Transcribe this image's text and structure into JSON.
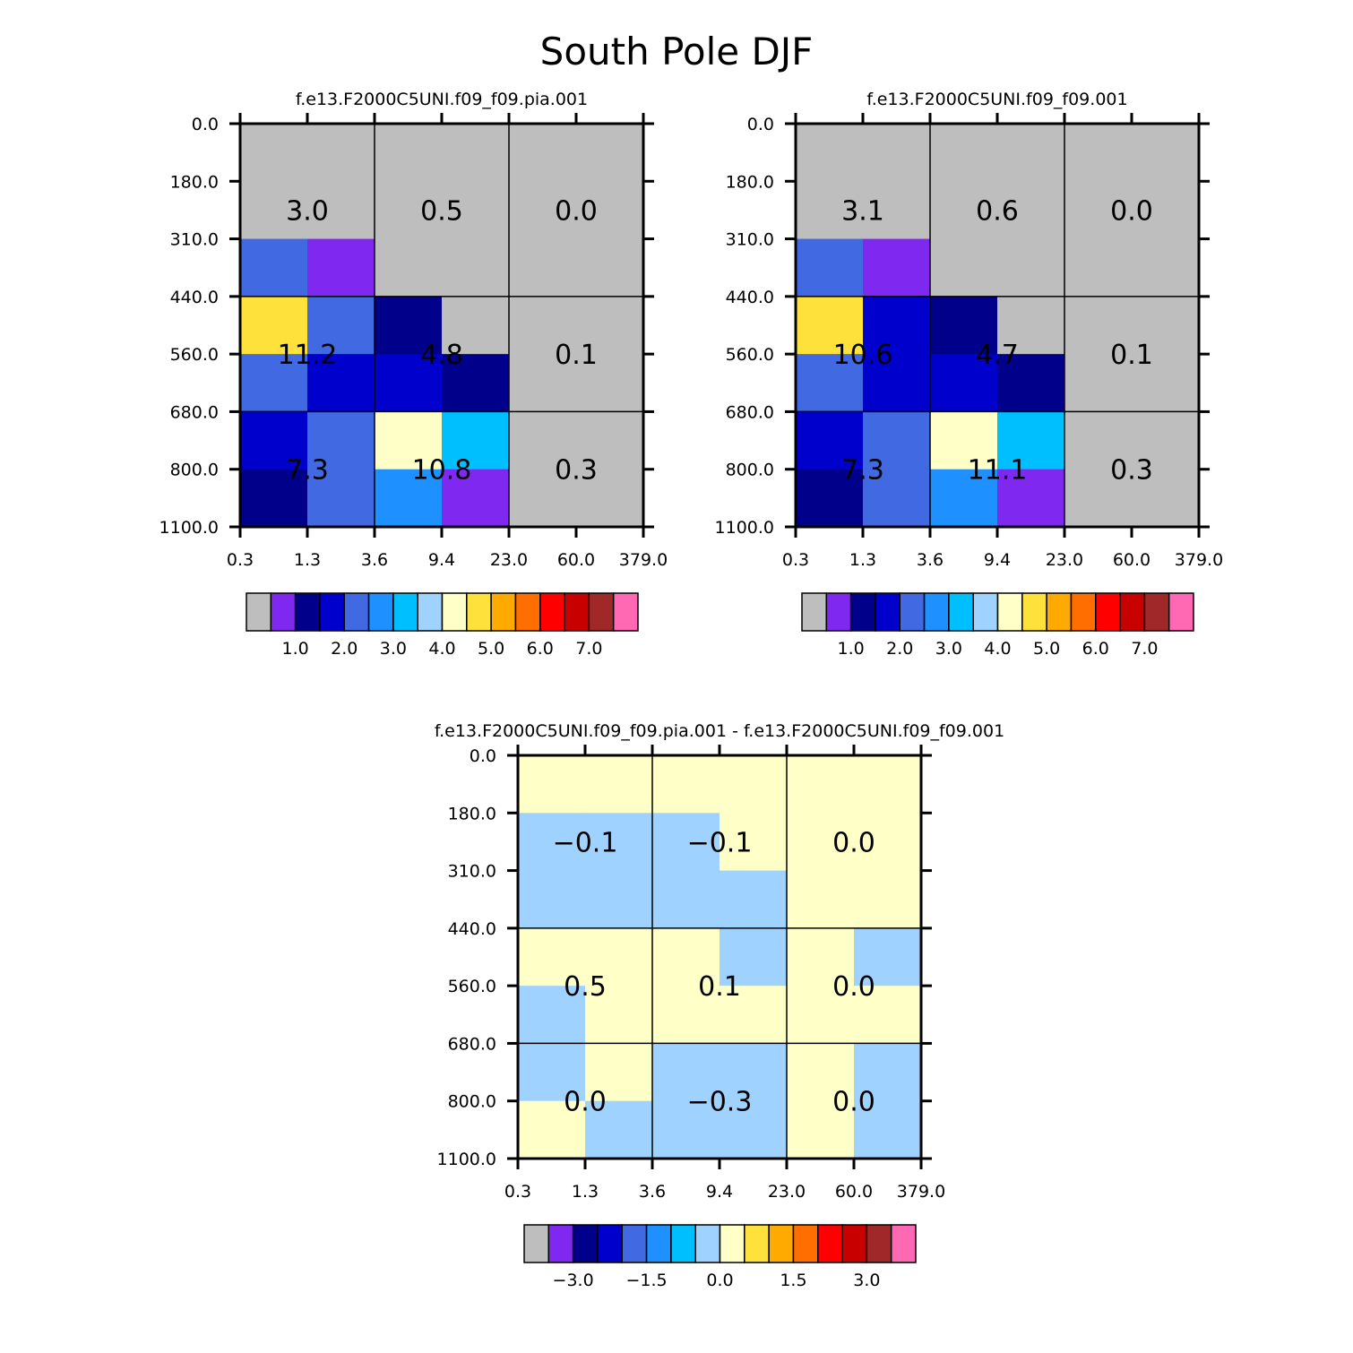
{
  "figure_title": "South Pole DJF",
  "chart_data": [
    {
      "type": "heatmap",
      "title": "f.e13.F2000C5UNI.f09_f09.pia.001",
      "xlabel": "",
      "ylabel": "",
      "x_ticks": [
        "0.3",
        "1.3",
        "3.6",
        "9.4",
        "23.0",
        "60.0",
        "379.0"
      ],
      "y_ticks": [
        "0.0",
        "180.0",
        "310.0",
        "440.0",
        "560.0",
        "680.0",
        "800.0",
        "1100.0"
      ],
      "color_index_grid": [
        [
          0,
          0,
          0,
          0,
          0,
          0
        ],
        [
          0,
          0,
          0,
          0,
          0,
          0
        ],
        [
          4,
          1,
          0,
          0,
          0,
          0
        ],
        [
          9,
          4,
          2,
          0,
          0,
          0
        ],
        [
          4,
          3,
          3,
          2,
          0,
          0
        ],
        [
          3,
          4,
          8,
          6,
          0,
          0
        ],
        [
          2,
          4,
          5,
          1,
          0,
          0
        ]
      ],
      "box_values": [
        [
          "3.0",
          "0.5",
          "0.0"
        ],
        [
          "11.2",
          "4.8",
          "0.1"
        ],
        [
          "7.3",
          "10.8",
          "0.3"
        ]
      ],
      "colorbar": {
        "colors": [
          "#bebebe",
          "#7f28ef",
          "#00008b",
          "#0000cd",
          "#4169e1",
          "#1e90ff",
          "#00bfff",
          "#a0d2ff",
          "#ffffc8",
          "#ffe13c",
          "#ffaa00",
          "#ff6e00",
          "#ff0000",
          "#c80000",
          "#a02828",
          "#ff69b4"
        ],
        "labels": [
          "1.0",
          "2.0",
          "3.0",
          "4.0",
          "5.0",
          "6.0",
          "7.0"
        ],
        "label_boundaries": [
          2,
          4,
          6,
          8,
          10,
          12,
          14
        ]
      }
    },
    {
      "type": "heatmap",
      "title": "f.e13.F2000C5UNI.f09_f09.001",
      "xlabel": "",
      "ylabel": "",
      "x_ticks": [
        "0.3",
        "1.3",
        "3.6",
        "9.4",
        "23.0",
        "60.0",
        "379.0"
      ],
      "y_ticks": [
        "0.0",
        "180.0",
        "310.0",
        "440.0",
        "560.0",
        "680.0",
        "800.0",
        "1100.0"
      ],
      "color_index_grid": [
        [
          0,
          0,
          0,
          0,
          0,
          0
        ],
        [
          0,
          0,
          0,
          0,
          0,
          0
        ],
        [
          4,
          1,
          0,
          0,
          0,
          0
        ],
        [
          9,
          3,
          2,
          0,
          0,
          0
        ],
        [
          4,
          3,
          3,
          2,
          0,
          0
        ],
        [
          3,
          4,
          8,
          6,
          0,
          0
        ],
        [
          2,
          4,
          5,
          1,
          0,
          0
        ]
      ],
      "box_values": [
        [
          "3.1",
          "0.6",
          "0.0"
        ],
        [
          "10.6",
          "4.7",
          "0.1"
        ],
        [
          "7.3",
          "11.1",
          "0.3"
        ]
      ],
      "colorbar": {
        "colors": [
          "#bebebe",
          "#7f28ef",
          "#00008b",
          "#0000cd",
          "#4169e1",
          "#1e90ff",
          "#00bfff",
          "#a0d2ff",
          "#ffffc8",
          "#ffe13c",
          "#ffaa00",
          "#ff6e00",
          "#ff0000",
          "#c80000",
          "#a02828",
          "#ff69b4"
        ],
        "labels": [
          "1.0",
          "2.0",
          "3.0",
          "4.0",
          "5.0",
          "6.0",
          "7.0"
        ],
        "label_boundaries": [
          2,
          4,
          6,
          8,
          10,
          12,
          14
        ]
      }
    },
    {
      "type": "heatmap",
      "title": "f.e13.F2000C5UNI.f09_f09.pia.001 - f.e13.F2000C5UNI.f09_f09.001",
      "xlabel": "",
      "ylabel": "",
      "x_ticks": [
        "0.3",
        "1.3",
        "3.6",
        "9.4",
        "23.0",
        "60.0",
        "379.0"
      ],
      "y_ticks": [
        "0.0",
        "180.0",
        "310.0",
        "440.0",
        "560.0",
        "680.0",
        "800.0",
        "1100.0"
      ],
      "color_index_grid": [
        [
          8,
          8,
          8,
          8,
          8,
          8
        ],
        [
          7,
          7,
          7,
          8,
          8,
          8
        ],
        [
          7,
          7,
          7,
          7,
          8,
          8
        ],
        [
          8,
          8,
          8,
          7,
          8,
          7
        ],
        [
          7,
          8,
          8,
          8,
          8,
          8
        ],
        [
          7,
          8,
          7,
          7,
          8,
          7
        ],
        [
          8,
          7,
          7,
          7,
          8,
          7
        ]
      ],
      "box_values": [
        [
          "−0.1",
          "−0.1",
          "0.0"
        ],
        [
          "0.5",
          "0.1",
          "0.0"
        ],
        [
          "0.0",
          "−0.3",
          "0.0"
        ]
      ],
      "colorbar": {
        "colors": [
          "#bebebe",
          "#7f28ef",
          "#00008b",
          "#0000cd",
          "#4169e1",
          "#1e90ff",
          "#00bfff",
          "#a0d2ff",
          "#ffffc8",
          "#ffe13c",
          "#ffaa00",
          "#ff6e00",
          "#ff0000",
          "#c80000",
          "#a02828",
          "#ff69b4"
        ],
        "labels": [
          "−3.0",
          "−1.5",
          "0.0",
          "1.5",
          "3.0"
        ],
        "label_boundaries": [
          2,
          5,
          8,
          11,
          14
        ]
      }
    }
  ]
}
